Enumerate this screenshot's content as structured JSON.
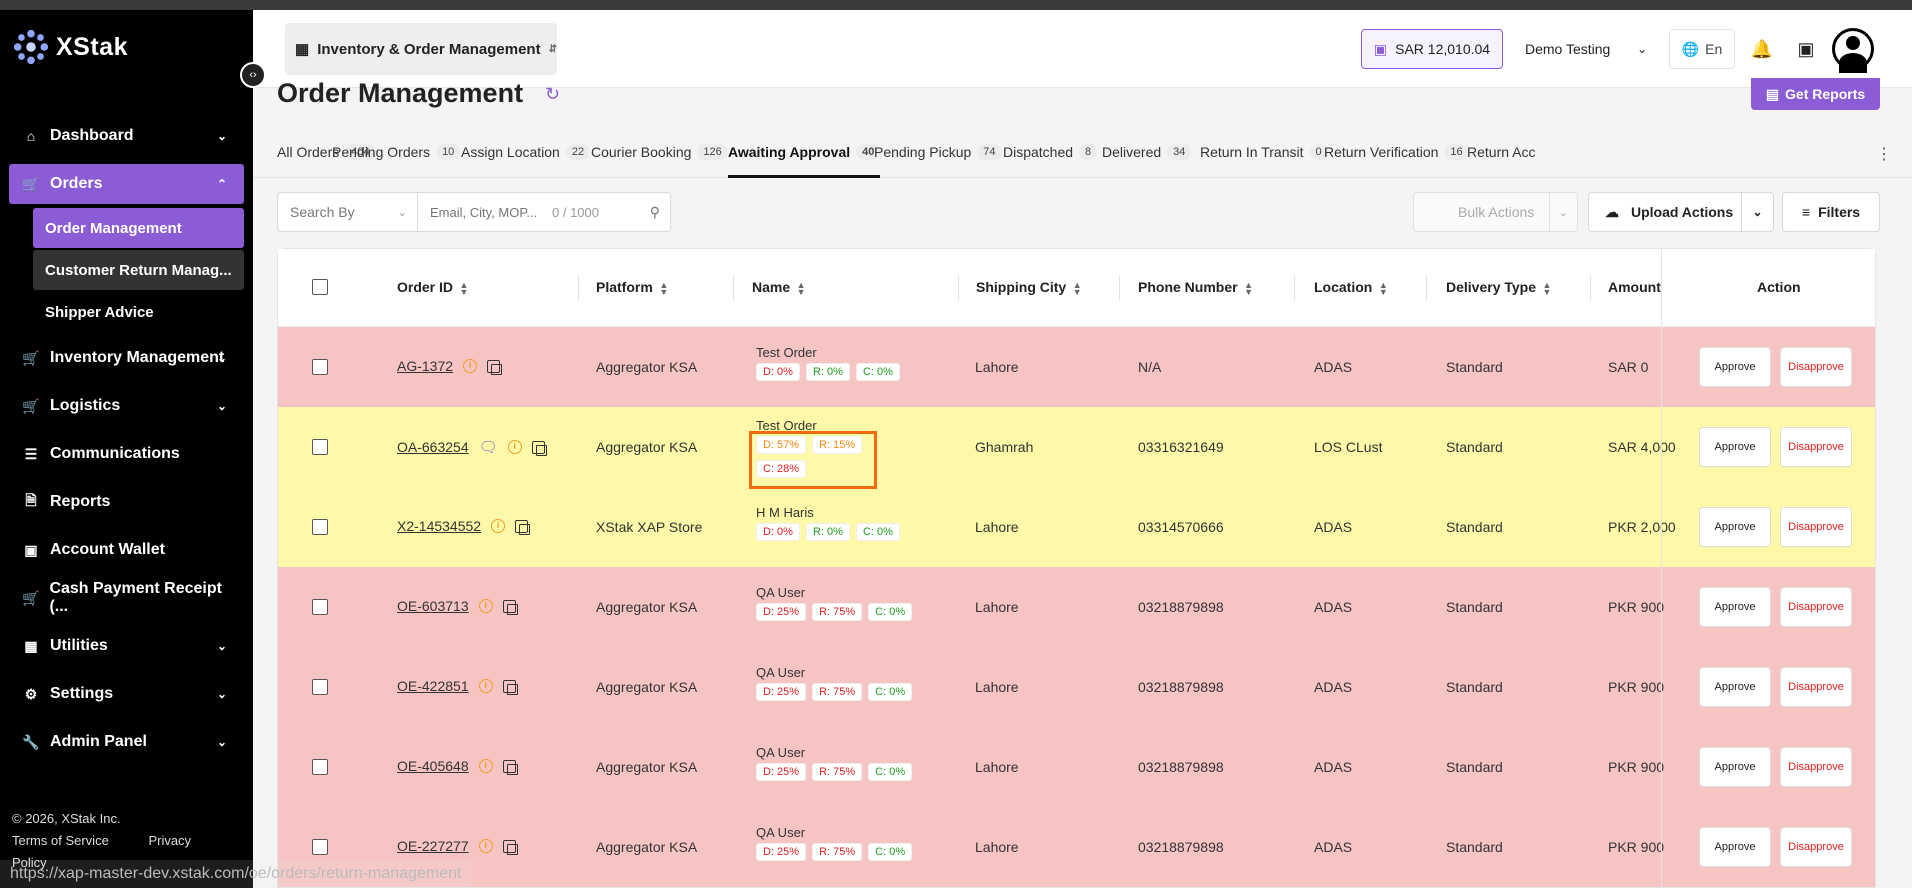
{
  "brand": {
    "name": "XStak",
    "accent": "#8b5cd6"
  },
  "sidebar": {
    "items": [
      {
        "label": "Dashboard",
        "icon": "home-icon",
        "chevron": "down"
      },
      {
        "label": "Orders",
        "icon": "cart-icon",
        "chevron": "up",
        "active": true
      },
      {
        "label": "Inventory Management",
        "icon": "cart-icon",
        "chevron": "down"
      },
      {
        "label": "Logistics",
        "icon": "cart-icon",
        "chevron": "down"
      },
      {
        "label": "Communications",
        "icon": "list-icon"
      },
      {
        "label": "Reports",
        "icon": "document-icon"
      },
      {
        "label": "Account Wallet",
        "icon": "wallet-icon"
      },
      {
        "label": "Cash Payment Receipt (...",
        "icon": "cart-icon"
      },
      {
        "label": "Utilities",
        "icon": "grid-icon",
        "chevron": "down"
      },
      {
        "label": "Settings",
        "icon": "gear-icon",
        "chevron": "down"
      },
      {
        "label": "Admin Panel",
        "icon": "wrench-icon",
        "chevron": "down"
      }
    ],
    "sub_items": [
      {
        "label": "Order Management",
        "selected": true
      },
      {
        "label": "Customer Return Manag...",
        "hover": true
      },
      {
        "label": "Shipper Advice"
      }
    ],
    "footer": {
      "copyright": "© 2026, XStak Inc.",
      "terms": "Terms of Service",
      "privacy": "Privacy Policy"
    }
  },
  "header": {
    "app_switcher": "Inventory & Order Management",
    "wallet_balance": "SAR 12,010.04",
    "account": "Demo Testing",
    "language": "En"
  },
  "page": {
    "title": "Order Management",
    "get_reports": "Get Reports"
  },
  "tabs": [
    {
      "label": "All Orders",
      "count": "404"
    },
    {
      "label": "Pending Orders",
      "count": "10"
    },
    {
      "label": "Assign Location",
      "count": "22"
    },
    {
      "label": "Courier Booking",
      "count": "126"
    },
    {
      "label": "Awaiting Approval",
      "count": "40",
      "active": true
    },
    {
      "label": "Pending Pickup",
      "count": "74"
    },
    {
      "label": "Dispatched",
      "count": "8"
    },
    {
      "label": "Delivered",
      "count": "34"
    },
    {
      "label": "Return In Transit",
      "count": "0"
    },
    {
      "label": "Return Verification",
      "count": "16"
    },
    {
      "label": "Return Acc",
      "count": ""
    }
  ],
  "toolbar": {
    "search_by": "Search By",
    "search_placeholder": "Email, City, MOP...",
    "search_count": "0 / 1000",
    "bulk_actions": "Bulk Actions",
    "upload_actions": "Upload Actions",
    "filters": "Filters"
  },
  "table": {
    "columns": [
      "Order ID",
      "Platform",
      "Name",
      "Shipping City",
      "Phone Number",
      "Location",
      "Delivery Type",
      "Amount",
      "Action"
    ],
    "approve_label": "Approve",
    "disapprove_label": "Disapprove",
    "rows": [
      {
        "color": "red",
        "order_id": "AG-1372",
        "chat": false,
        "platform": "Aggregator KSA",
        "name": "Test Order",
        "badges": [
          [
            "D: 0%",
            "red"
          ],
          [
            "R: 0%",
            "green"
          ],
          [
            "C: 0%",
            "green"
          ]
        ],
        "city": "Lahore",
        "phone": "N/A",
        "location": "ADAS",
        "delivery": "Standard",
        "amount": "SAR 0"
      },
      {
        "color": "yellow",
        "order_id": "OA-663254",
        "chat": true,
        "platform": "Aggregator KSA",
        "name": "Test Order",
        "badges": [
          [
            "D: 57%",
            "orange"
          ],
          [
            "R: 15%",
            "orange"
          ],
          [
            "C: 28%",
            "red"
          ]
        ],
        "city": "Ghamrah",
        "phone": "03316321649",
        "location": "LOS CLust",
        "delivery": "Standard",
        "amount": "SAR 4,000"
      },
      {
        "color": "yellow",
        "order_id": "X2-14534552",
        "chat": false,
        "platform": "XStak XAP Store",
        "name": "H M Haris",
        "badges": [
          [
            "D: 0%",
            "red"
          ],
          [
            "R: 0%",
            "green"
          ],
          [
            "C: 0%",
            "green"
          ]
        ],
        "city": "Lahore",
        "phone": "03314570666",
        "location": "ADAS",
        "delivery": "Standard",
        "amount": "PKR 2,000"
      },
      {
        "color": "red",
        "order_id": "OE-603713",
        "chat": false,
        "platform": "Aggregator KSA",
        "name": "QA User",
        "badges": [
          [
            "D: 25%",
            "red"
          ],
          [
            "R: 75%",
            "red"
          ],
          [
            "C: 0%",
            "green"
          ]
        ],
        "city": "Lahore",
        "phone": "03218879898",
        "location": "ADAS",
        "delivery": "Standard",
        "amount": "PKR 900"
      },
      {
        "color": "red",
        "order_id": "OE-422851",
        "chat": false,
        "platform": "Aggregator KSA",
        "name": "QA User",
        "badges": [
          [
            "D: 25%",
            "red"
          ],
          [
            "R: 75%",
            "red"
          ],
          [
            "C: 0%",
            "green"
          ]
        ],
        "city": "Lahore",
        "phone": "03218879898",
        "location": "ADAS",
        "delivery": "Standard",
        "amount": "PKR 900"
      },
      {
        "color": "red",
        "order_id": "OE-405648",
        "chat": false,
        "platform": "Aggregator KSA",
        "name": "QA User",
        "badges": [
          [
            "D: 25%",
            "red"
          ],
          [
            "R: 75%",
            "red"
          ],
          [
            "C: 0%",
            "green"
          ]
        ],
        "city": "Lahore",
        "phone": "03218879898",
        "location": "ADAS",
        "delivery": "Standard",
        "amount": "PKR 900"
      },
      {
        "color": "red",
        "order_id": "OE-227277",
        "chat": false,
        "platform": "Aggregator KSA",
        "name": "QA User",
        "badges": [
          [
            "D: 25%",
            "red"
          ],
          [
            "R: 75%",
            "red"
          ],
          [
            "C: 0%",
            "green"
          ]
        ],
        "city": "Lahore",
        "phone": "03218879898",
        "location": "ADAS",
        "delivery": "Standard",
        "amount": "PKR 900"
      }
    ]
  },
  "status_url": "https://xap-master-dev.xstak.com/oe/orders/return-management"
}
